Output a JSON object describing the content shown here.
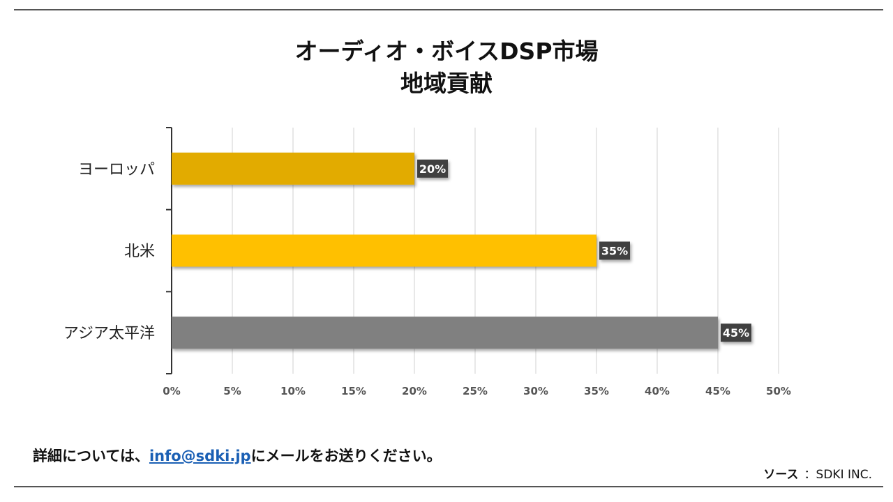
{
  "chart_data": {
    "type": "bar",
    "orientation": "horizontal",
    "title_lines": [
      "オーディオ・ボイスDSP市場",
      "地域貢献"
    ],
    "categories": [
      "ヨーロッパ",
      "北米",
      "アジア太平洋"
    ],
    "values": [
      20,
      35,
      45
    ],
    "data_labels": [
      "20%",
      "35%",
      "45%"
    ],
    "bar_colors": [
      "#e2ab00",
      "#ffc000",
      "#808080"
    ],
    "xlim": [
      0,
      50
    ],
    "xticks": [
      "0%",
      "5%",
      "10%",
      "15%",
      "20%",
      "25%",
      "30%",
      "35%",
      "40%",
      "45%",
      "50%"
    ],
    "grid": true,
    "legend": "none"
  },
  "footer": {
    "note_prefix": "詳細については、",
    "email": "info@sdki.jp",
    "note_suffix": "にメールをお送りください。",
    "source_label": "ソース",
    "source_value": "：SDKI INC."
  }
}
